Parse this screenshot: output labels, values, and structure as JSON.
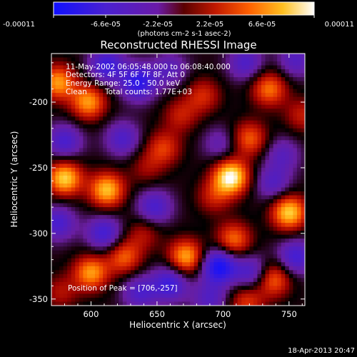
{
  "chart_data": {
    "type": "heatmap",
    "title": "Reconstructed RHESSI Image",
    "xlabel": "Heliocentric X (arcsec)",
    "ylabel": "Heliocentric Y (arcsec)",
    "xlim": [
      570,
      762
    ],
    "ylim": [
      -355,
      -163
    ],
    "xticks": [
      "600",
      "650",
      "700",
      "750"
    ],
    "xtick_values": [
      600,
      650,
      700,
      750
    ],
    "yticks": [
      "-200",
      "-250",
      "-300",
      "-350"
    ],
    "ytick_values": [
      -200,
      -250,
      -300,
      -350
    ],
    "colorbar": {
      "ticks": [
        "-0.00011",
        "-6.6e-05",
        "-2.2e-05",
        "2.2e-05",
        "6.6e-05",
        "0.00011"
      ],
      "unit_label": "(photons cm-2 s-1 asec-2)",
      "range": [
        -0.00011,
        0.00011
      ],
      "colors": [
        "#1010ff",
        "#6a1aa8",
        "#800000",
        "#e04000",
        "#ffb000",
        "#ffffff"
      ]
    },
    "annotations": {
      "time": "11-May-2002 06:05:48.000 to 06:08:40.000",
      "detectors": "Detectors: 4F 5F 6F 7F 8F, Att 0",
      "energy": "Energy Range: 25.0 - 50.0 keV",
      "method": "Clean",
      "counts": "Total counts: 1.77E+03",
      "peak": "Position of Peak = [706,-257]"
    },
    "peak": [
      706,
      -257
    ],
    "sources": [
      {
        "x": 706,
        "y": -257,
        "v": 1.0
      },
      {
        "x": 580,
        "y": -258,
        "v": 0.85
      },
      {
        "x": 612,
        "y": -267,
        "v": 0.8
      },
      {
        "x": 750,
        "y": -284,
        "v": 0.85
      },
      {
        "x": 575,
        "y": -185,
        "v": 0.7
      },
      {
        "x": 598,
        "y": -200,
        "v": 0.7
      },
      {
        "x": 735,
        "y": -190,
        "v": 0.6
      },
      {
        "x": 655,
        "y": -235,
        "v": 0.45
      },
      {
        "x": 668,
        "y": -210,
        "v": 0.35
      },
      {
        "x": 685,
        "y": -195,
        "v": 0.4
      },
      {
        "x": 720,
        "y": -228,
        "v": 0.55
      },
      {
        "x": 672,
        "y": -318,
        "v": 0.75
      },
      {
        "x": 708,
        "y": -305,
        "v": 0.6
      },
      {
        "x": 600,
        "y": -330,
        "v": 0.7
      },
      {
        "x": 625,
        "y": -318,
        "v": 0.55
      },
      {
        "x": 738,
        "y": -335,
        "v": 0.6
      },
      {
        "x": 718,
        "y": -352,
        "v": 0.45
      },
      {
        "x": 640,
        "y": -300,
        "v": 0.3
      },
      {
        "x": 642,
        "y": -250,
        "v": 0.25
      },
      {
        "x": 760,
        "y": -210,
        "v": 0.35
      },
      {
        "x": 577,
        "y": -345,
        "v": 0.3
      },
      {
        "x": 693,
        "y": -272,
        "v": 0.35
      },
      {
        "x": 636,
        "y": -185,
        "v": -0.7
      },
      {
        "x": 612,
        "y": -172,
        "v": -0.6
      },
      {
        "x": 580,
        "y": -230,
        "v": -0.5
      },
      {
        "x": 624,
        "y": -228,
        "v": -0.45
      },
      {
        "x": 698,
        "y": -232,
        "v": -0.3
      },
      {
        "x": 738,
        "y": -262,
        "v": -0.4
      },
      {
        "x": 575,
        "y": -292,
        "v": -0.5
      },
      {
        "x": 610,
        "y": -300,
        "v": -0.55
      },
      {
        "x": 648,
        "y": -280,
        "v": -0.5
      },
      {
        "x": 660,
        "y": -338,
        "v": -0.6
      },
      {
        "x": 697,
        "y": -325,
        "v": -0.85
      },
      {
        "x": 755,
        "y": -318,
        "v": -0.55
      },
      {
        "x": 722,
        "y": -330,
        "v": -0.5
      },
      {
        "x": 690,
        "y": -350,
        "v": -0.4
      },
      {
        "x": 637,
        "y": -345,
        "v": -0.45
      },
      {
        "x": 717,
        "y": -170,
        "v": -0.45
      },
      {
        "x": 755,
        "y": -168,
        "v": -0.4
      },
      {
        "x": 660,
        "y": -175,
        "v": -0.35
      },
      {
        "x": 745,
        "y": -240,
        "v": -0.35
      }
    ]
  },
  "timestamp": "18-Apr-2013 20:47"
}
